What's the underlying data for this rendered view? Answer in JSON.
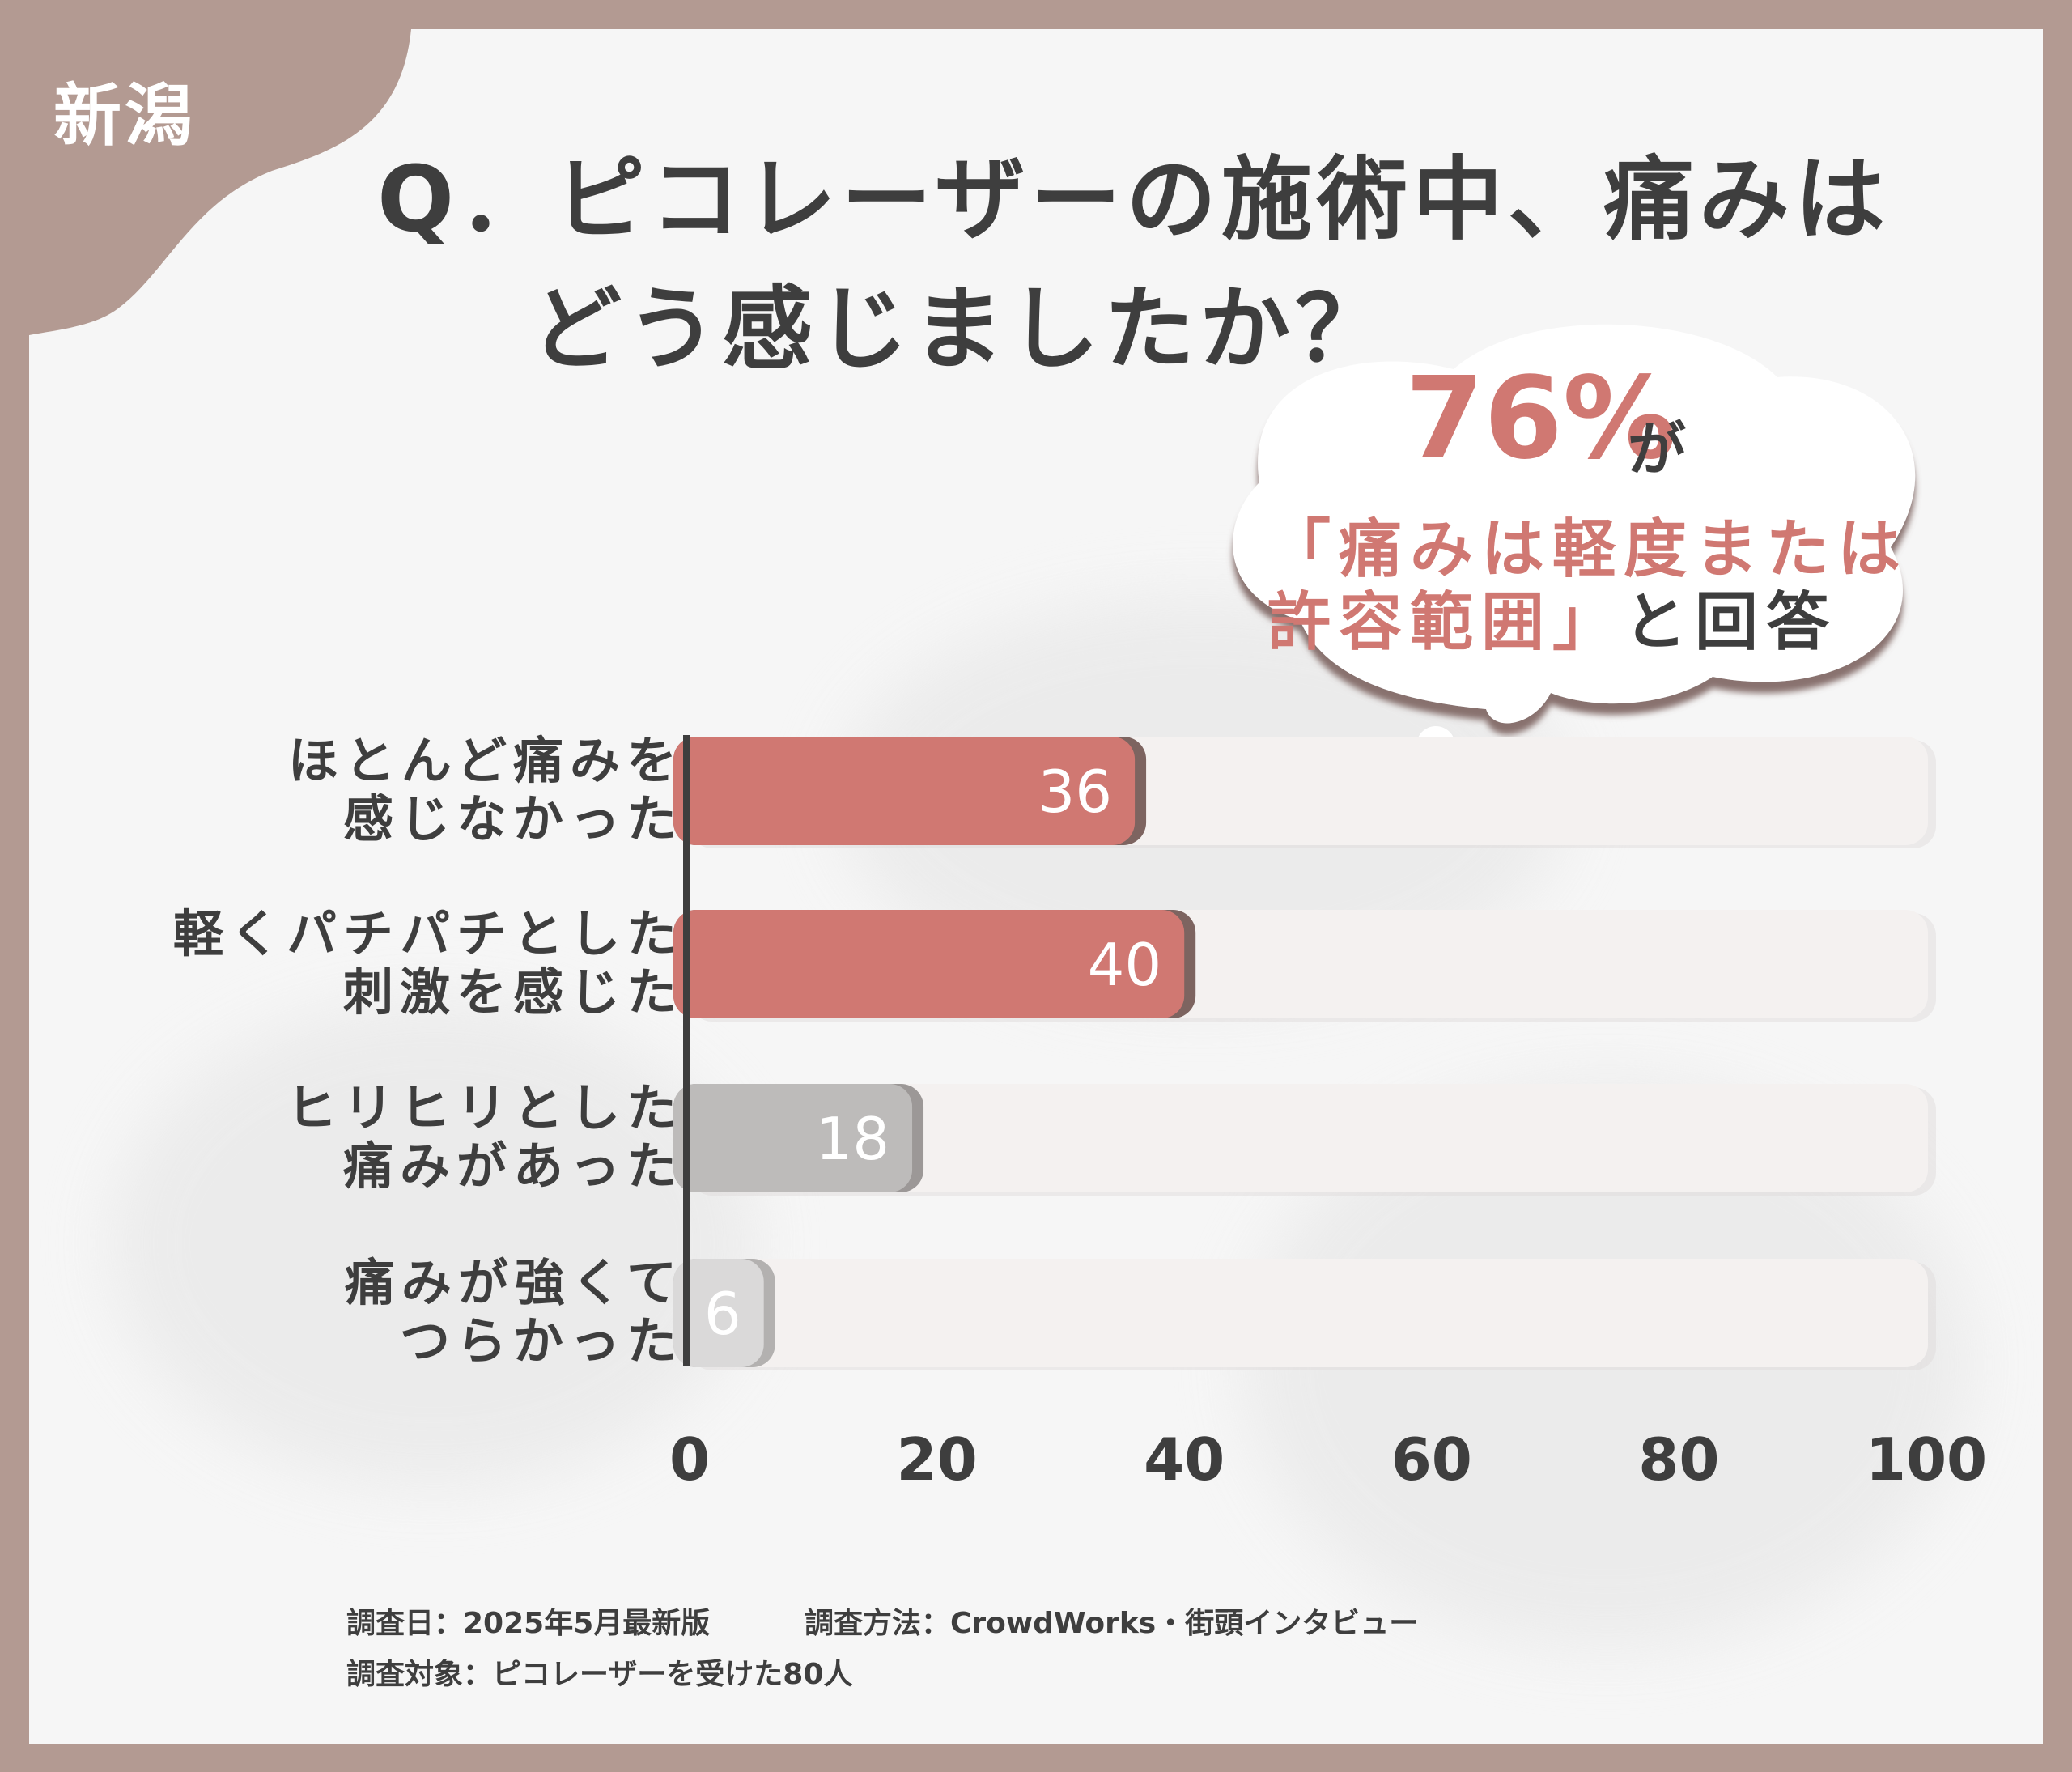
{
  "region": "新潟",
  "title": {
    "line1": "Q．ピコレーザーの施術中、痛みは",
    "line2": "どう感じましたか？"
  },
  "callout": {
    "percent": "76%",
    "ga": "が",
    "line1": "「痛みは軽度または",
    "line2_pink": "許容範囲」",
    "line2_dark": "と回答"
  },
  "chart_data": {
    "type": "bar",
    "orientation": "horizontal",
    "categories": [
      [
        "ほとんど痛みを",
        "感じなかった"
      ],
      [
        "軽くパチパチとした",
        "刺激を感じた"
      ],
      [
        "ヒリヒリとした",
        "痛みがあった"
      ],
      [
        "痛みが強くて",
        "つらかった"
      ]
    ],
    "values": [
      36,
      40,
      18,
      6
    ],
    "value_labels": [
      "36",
      "40",
      "18",
      "6"
    ],
    "xlim": [
      0,
      100
    ],
    "xticks": [
      "0",
      "20",
      "40",
      "60",
      "80",
      "100"
    ],
    "colors": [
      "#d07872",
      "#d07872",
      "#bdbbba",
      "#dad9d9"
    ],
    "shadow_colors": [
      "#7d6460",
      "#7d6460",
      "#9c9897",
      "#b3b1b0"
    ],
    "track_color": "#f4f1f0",
    "grid": false
  },
  "footer": {
    "date": "調査日：2025年5月最新版",
    "method": "調査方法：CrowdWorks・街頭インタビュー",
    "target": "調査対象：ピコレーザーを受けた80人"
  }
}
